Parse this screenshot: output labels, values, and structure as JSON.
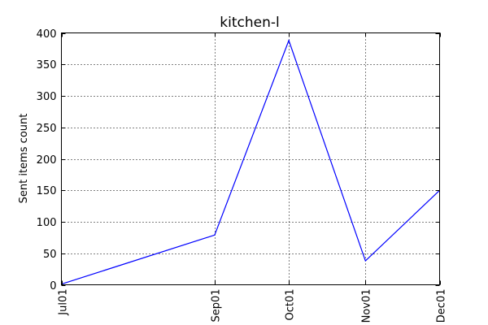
{
  "chart_data": {
    "type": "line",
    "title": "kitchen-l",
    "xlabel": "",
    "ylabel": "Sent items count",
    "x": [
      "Jul01",
      "Sep01",
      "Oct01",
      "Nov01",
      "Dec01"
    ],
    "x_dates": [
      "2001-07-01",
      "2001-09-01",
      "2001-10-01",
      "2001-11-01",
      "2001-12-01"
    ],
    "xlim": [
      "2001-07-01",
      "2001-12-01"
    ],
    "ylim": [
      0,
      400
    ],
    "yticks": [
      0,
      50,
      100,
      150,
      200,
      250,
      300,
      350,
      400
    ],
    "xticks": [
      "Jul01",
      "Sep01",
      "Oct01",
      "Nov01",
      "Dec01"
    ],
    "series": [
      {
        "values": [
          1,
          79,
          388,
          38,
          150
        ],
        "color": "#0000ff"
      }
    ],
    "grid": true,
    "legend": "none"
  }
}
